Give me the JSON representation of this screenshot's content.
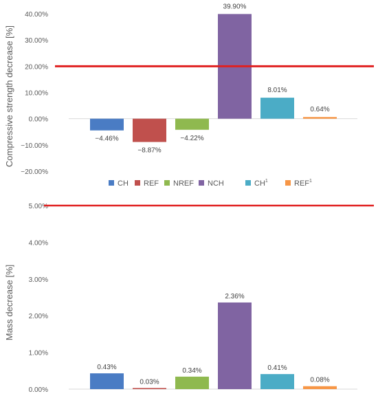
{
  "chart_data": [
    {
      "type": "bar",
      "ylabel": "Compressive strength decrease [%]",
      "categories": [
        "CH",
        "REF",
        "NREF",
        "NCH",
        "CH1",
        "REF1"
      ],
      "category_labels": [
        {
          "base": "CH",
          "sup": ""
        },
        {
          "base": "REF",
          "sup": ""
        },
        {
          "base": "NREF",
          "sup": ""
        },
        {
          "base": "NCH",
          "sup": ""
        },
        {
          "base": "CH",
          "sup": "1"
        },
        {
          "base": "REF",
          "sup": "1"
        }
      ],
      "values": [
        -4.46,
        -8.87,
        -4.22,
        39.9,
        8.01,
        0.64
      ],
      "data_labels": [
        "−4.46%",
        "−8.87%",
        "−4.22%",
        "39.90%",
        "8.01%",
        "0.64%"
      ],
      "ylim": [
        -20,
        40
      ],
      "yticks": [
        -20,
        -10,
        0,
        10,
        20,
        30,
        40
      ],
      "ytick_labels": [
        "−20.00%",
        "−10.00%",
        "0.00%",
        "10.00%",
        "20.00%",
        "30.00%",
        "40.00%"
      ],
      "reference_line": 20,
      "legend_position": "bottom",
      "colors": [
        "#4a7cc4",
        "#c0504d",
        "#8fb94f",
        "#8064a2",
        "#4bacc6",
        "#f79646"
      ],
      "reference_line_color": "#e02020"
    },
    {
      "type": "bar",
      "ylabel": "Mass decrease [%]",
      "categories": [
        "CH",
        "REF",
        "NREF",
        "NCH",
        "CH1",
        "REF1"
      ],
      "values": [
        0.43,
        0.03,
        0.34,
        2.36,
        0.41,
        0.08
      ],
      "data_labels": [
        "0.43%",
        "0.03%",
        "0.34%",
        "2.36%",
        "0.41%",
        "0.08%"
      ],
      "ylim": [
        0,
        5
      ],
      "yticks": [
        0,
        1,
        2,
        3,
        4,
        5
      ],
      "ytick_labels": [
        "0.00%",
        "1.00%",
        "2.00%",
        "3.00%",
        "4.00%",
        "5.00%"
      ],
      "reference_line": 5,
      "colors": [
        "#4a7cc4",
        "#c0504d",
        "#8fb94f",
        "#8064a2",
        "#4bacc6",
        "#f79646"
      ],
      "reference_line_color": "#e02020"
    }
  ]
}
